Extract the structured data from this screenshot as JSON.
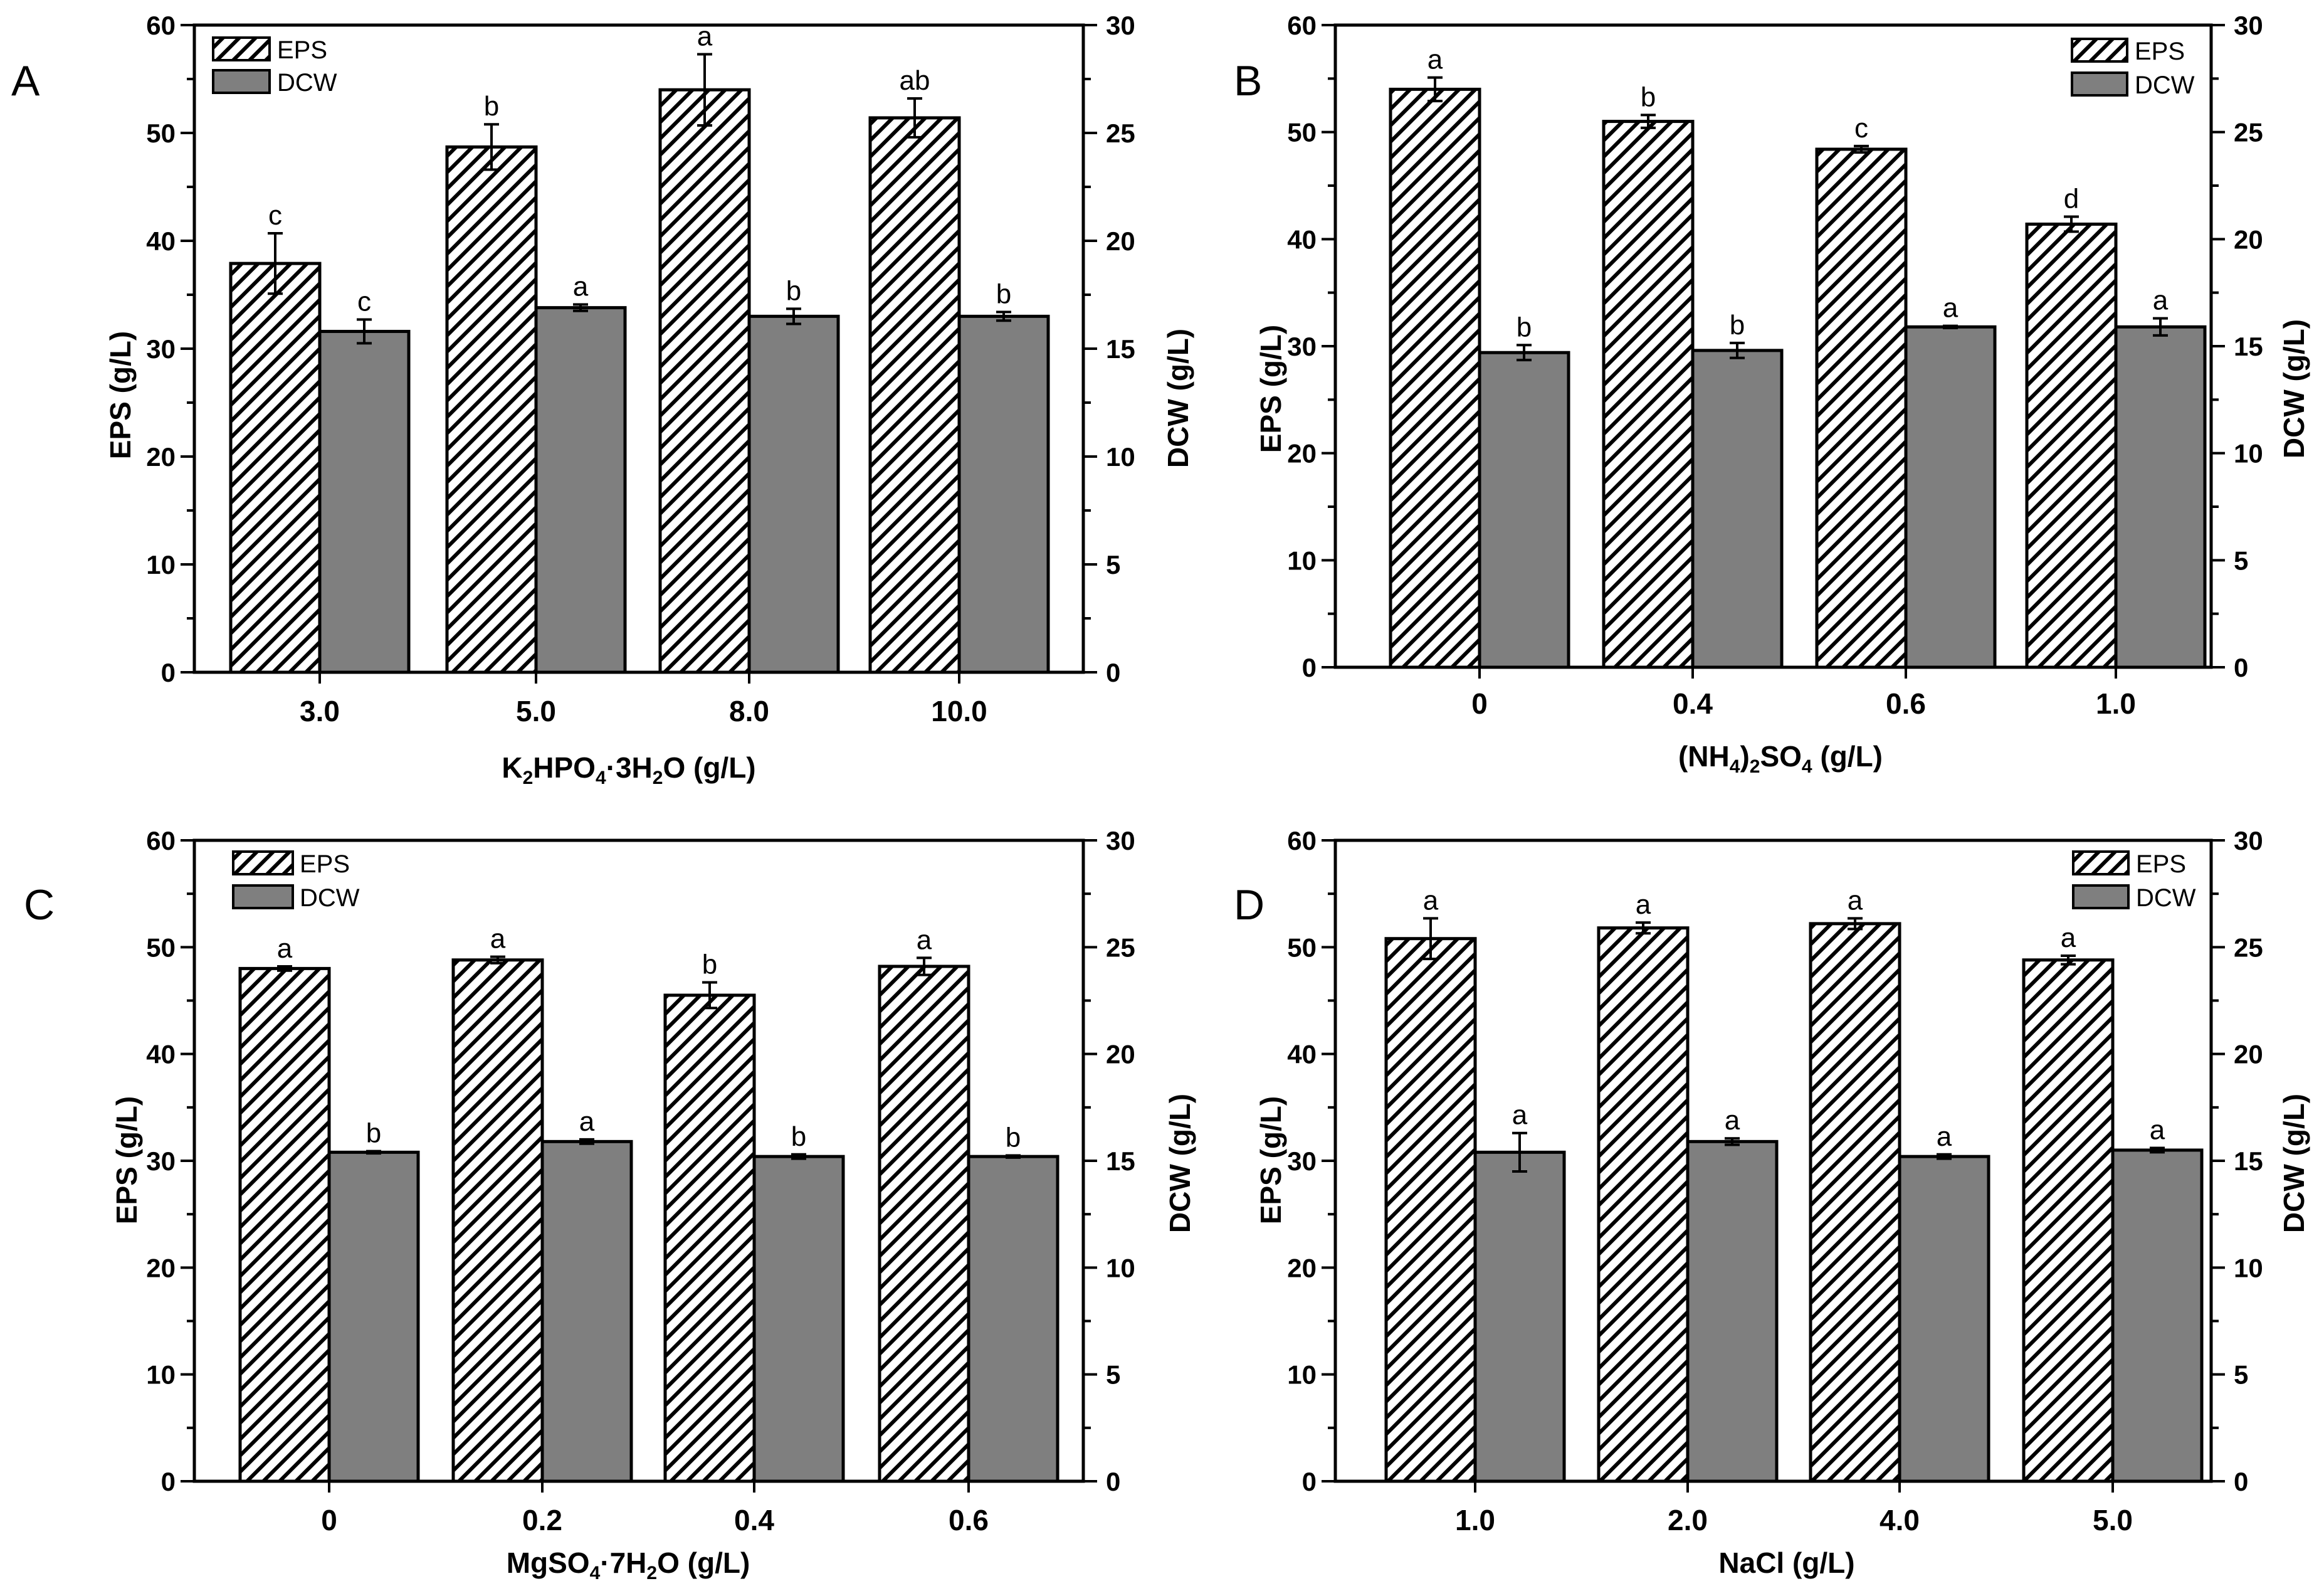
{
  "figure": {
    "colors": {
      "dcw_fill": "#7f7f7f",
      "eps_fill": "#ffffff",
      "line": "#000000"
    }
  },
  "chart_data": [
    {
      "panel": "A",
      "type": "bar",
      "x_title": {
        "prefix": "K",
        "sub1": "2",
        "mid1": "HPO",
        "sub2": "4",
        "mid2": "·3H",
        "sub3": "2",
        "suffix": "O (g/L)"
      },
      "categories": [
        "3.0",
        "5.0",
        "8.0",
        "10.0"
      ],
      "ylabel_left": "EPS (g/L)",
      "ylabel_right": "DCW (g/L)",
      "ylim_left": [
        0,
        60
      ],
      "ylim_right": [
        0,
        30
      ],
      "yticks_left": [
        "0",
        "10",
        "20",
        "30",
        "40",
        "50",
        "60"
      ],
      "yticks_right": [
        "0",
        "5",
        "10",
        "15",
        "20",
        "25",
        "30"
      ],
      "legend_position": "top-left",
      "series": [
        {
          "name": "EPS",
          "axis": "left",
          "pattern": "hatch",
          "values": [
            37.9,
            48.7,
            54.0,
            51.4
          ],
          "errors": [
            2.8,
            2.1,
            3.3,
            1.8
          ],
          "labels": [
            "c",
            "b",
            "a",
            "ab"
          ]
        },
        {
          "name": "DCW",
          "axis": "right",
          "pattern": "solid",
          "values": [
            15.8,
            16.9,
            16.5,
            16.5
          ],
          "errors": [
            0.55,
            0.15,
            0.35,
            0.2
          ],
          "labels": [
            "c",
            "a",
            "b",
            "b"
          ]
        }
      ]
    },
    {
      "panel": "B",
      "type": "bar",
      "x_title": {
        "prefix": "(NH",
        "sub1": "4",
        "mid1": ")",
        "sub2": "2",
        "mid2": "SO",
        "sub3": "4",
        "suffix": " (g/L)"
      },
      "categories": [
        "0",
        "0.4",
        "0.6",
        "1.0"
      ],
      "ylabel_left": "EPS (g/L)",
      "ylabel_right": "DCW (g/L)",
      "ylim_left": [
        0,
        60
      ],
      "ylim_right": [
        0,
        30
      ],
      "yticks_left": [
        "0",
        "10",
        "20",
        "30",
        "40",
        "50",
        "60"
      ],
      "yticks_right": [
        "0",
        "5",
        "10",
        "15",
        "20",
        "25",
        "30"
      ],
      "legend_position": "top-right",
      "series": [
        {
          "name": "EPS",
          "axis": "left",
          "pattern": "hatch",
          "values": [
            54.0,
            51.0,
            48.4,
            41.4
          ],
          "errors": [
            1.1,
            0.6,
            0.3,
            0.7
          ],
          "labels": [
            "a",
            "b",
            "c",
            "d"
          ]
        },
        {
          "name": "DCW",
          "axis": "right",
          "pattern": "solid",
          "values": [
            14.7,
            14.8,
            15.9,
            15.9
          ],
          "errors": [
            0.35,
            0.35,
            0.05,
            0.4
          ],
          "labels": [
            "b",
            "b",
            "a",
            "a"
          ]
        }
      ]
    },
    {
      "panel": "C",
      "type": "bar",
      "x_title": {
        "prefix": "MgSO",
        "sub1": "4",
        "mid1": "·7H",
        "sub2": "2",
        "mid2": "O (g/L)",
        "sub3": "",
        "suffix": ""
      },
      "categories": [
        "0",
        "0.2",
        "0.4",
        "0.6"
      ],
      "ylabel_left": "EPS (g/L)",
      "ylabel_right": "DCW (g/L)",
      "ylim_left": [
        0,
        60
      ],
      "ylim_right": [
        0,
        30
      ],
      "yticks_left": [
        "0",
        "10",
        "20",
        "30",
        "40",
        "50",
        "60"
      ],
      "yticks_right": [
        "0",
        "5",
        "10",
        "15",
        "20",
        "25",
        "30"
      ],
      "legend_position": "top-left",
      "series": [
        {
          "name": "EPS",
          "axis": "left",
          "pattern": "hatch",
          "values": [
            48.0,
            48.8,
            45.5,
            48.2
          ],
          "errors": [
            0.2,
            0.3,
            1.2,
            0.8
          ],
          "labels": [
            "a",
            "a",
            "b",
            "a"
          ]
        },
        {
          "name": "DCW",
          "axis": "right",
          "pattern": "solid",
          "values": [
            15.4,
            15.9,
            15.2,
            15.2
          ],
          "errors": [
            0.05,
            0.1,
            0.1,
            0.05
          ],
          "labels": [
            "b",
            "a",
            "b",
            "b"
          ]
        }
      ]
    },
    {
      "panel": "D",
      "type": "bar",
      "x_title": {
        "prefix": "NaCl (g/L)",
        "sub1": "",
        "mid1": "",
        "sub2": "",
        "mid2": "",
        "sub3": "",
        "suffix": ""
      },
      "categories": [
        "1.0",
        "2.0",
        "4.0",
        "5.0"
      ],
      "ylabel_left": "EPS (g/L)",
      "ylabel_right": "DCW (g/L)",
      "ylim_left": [
        0,
        60
      ],
      "ylim_right": [
        0,
        30
      ],
      "yticks_left": [
        "0",
        "10",
        "20",
        "30",
        "40",
        "50",
        "60"
      ],
      "yticks_right": [
        "0",
        "5",
        "10",
        "15",
        "20",
        "25",
        "30"
      ],
      "legend_position": "top-right",
      "series": [
        {
          "name": "EPS",
          "axis": "left",
          "pattern": "hatch",
          "values": [
            50.8,
            51.8,
            52.2,
            48.8
          ],
          "errors": [
            1.9,
            0.5,
            0.5,
            0.4
          ],
          "labels": [
            "a",
            "a",
            "a",
            "a"
          ]
        },
        {
          "name": "DCW",
          "axis": "right",
          "pattern": "solid",
          "values": [
            15.4,
            15.9,
            15.2,
            15.5
          ],
          "errors": [
            0.9,
            0.15,
            0.1,
            0.1
          ],
          "labels": [
            "a",
            "a",
            "a",
            "a"
          ]
        }
      ]
    }
  ]
}
